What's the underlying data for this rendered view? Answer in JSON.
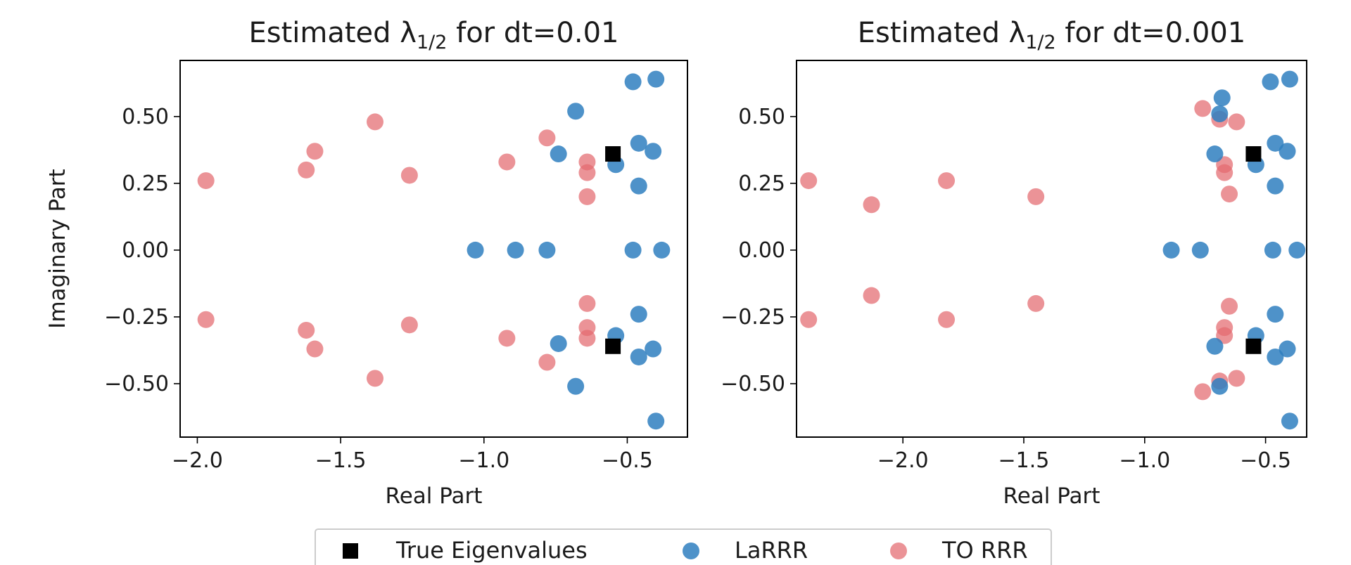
{
  "chart_data": [
    {
      "type": "scatter",
      "title_prefix": "Estimated λ",
      "title_subscript": "1/2",
      "title_suffix": " for dt=0.01",
      "xlabel": "Real Part",
      "ylabel": "Imaginary Part",
      "xlim": [
        -2.06,
        -0.29
      ],
      "ylim": [
        -0.7,
        0.71
      ],
      "xticks": [
        -2.0,
        -1.5,
        -1.0,
        -0.5
      ],
      "xtick_labels": [
        "−2.0",
        "−1.5",
        "−1.0",
        "−0.5"
      ],
      "yticks": [
        -0.5,
        -0.25,
        0.0,
        0.25,
        0.5
      ],
      "ytick_labels": [
        "−0.50",
        "−0.25",
        "0.00",
        "0.25",
        "0.50"
      ],
      "series": [
        {
          "name": "TO RRR",
          "points": [
            [
              -1.97,
              0.26
            ],
            [
              -1.97,
              -0.26
            ],
            [
              -1.62,
              0.3
            ],
            [
              -1.62,
              -0.3
            ],
            [
              -1.59,
              0.37
            ],
            [
              -1.59,
              -0.37
            ],
            [
              -1.38,
              0.48
            ],
            [
              -1.38,
              -0.48
            ],
            [
              -1.26,
              0.28
            ],
            [
              -1.26,
              -0.28
            ],
            [
              -0.92,
              0.33
            ],
            [
              -0.92,
              -0.33
            ],
            [
              -0.78,
              0.42
            ],
            [
              -0.78,
              -0.42
            ],
            [
              -0.64,
              0.33
            ],
            [
              -0.64,
              -0.33
            ],
            [
              -0.64,
              0.29
            ],
            [
              -0.64,
              -0.29
            ],
            [
              -0.64,
              0.2
            ],
            [
              -0.64,
              -0.2
            ]
          ]
        },
        {
          "name": "LaRRR",
          "points": [
            [
              -0.38,
              0.0
            ],
            [
              -0.48,
              0.0
            ],
            [
              -0.78,
              0.0
            ],
            [
              -0.89,
              0.0
            ],
            [
              -1.03,
              0.0
            ],
            [
              -0.4,
              0.64
            ],
            [
              -0.4,
              -0.64
            ],
            [
              -0.48,
              0.63
            ],
            [
              -0.41,
              0.37
            ],
            [
              -0.41,
              -0.37
            ],
            [
              -0.46,
              0.4
            ],
            [
              -0.46,
              -0.4
            ],
            [
              -0.46,
              0.24
            ],
            [
              -0.46,
              -0.24
            ],
            [
              -0.54,
              0.32
            ],
            [
              -0.54,
              -0.32
            ],
            [
              -0.74,
              0.36
            ],
            [
              -0.74,
              -0.35
            ],
            [
              -0.68,
              0.52
            ],
            [
              -0.68,
              -0.51
            ]
          ]
        },
        {
          "name": "True Eigenvalues",
          "points": [
            [
              -0.55,
              0.36
            ],
            [
              -0.55,
              -0.36
            ]
          ]
        }
      ]
    },
    {
      "type": "scatter",
      "title_prefix": "Estimated λ",
      "title_subscript": "1/2",
      "title_suffix": " for dt=0.001",
      "xlabel": "Real Part",
      "ylabel": "",
      "xlim": [
        -2.44,
        -0.33
      ],
      "ylim": [
        -0.7,
        0.71
      ],
      "xticks": [
        -2.0,
        -1.5,
        -1.0,
        -0.5
      ],
      "xtick_labels": [
        "−2.0",
        "−1.5",
        "−1.0",
        "−0.5"
      ],
      "yticks": [
        -0.5,
        -0.25,
        0.0,
        0.25,
        0.5
      ],
      "ytick_labels": [
        "−0.50",
        "−0.25",
        "0.00",
        "0.25",
        "0.50"
      ],
      "series": [
        {
          "name": "TO RRR",
          "points": [
            [
              -2.39,
              0.26
            ],
            [
              -2.39,
              -0.26
            ],
            [
              -2.13,
              0.17
            ],
            [
              -2.13,
              -0.17
            ],
            [
              -1.82,
              0.26
            ],
            [
              -1.82,
              -0.26
            ],
            [
              -1.45,
              0.2
            ],
            [
              -1.45,
              -0.2
            ],
            [
              -0.76,
              0.53
            ],
            [
              -0.76,
              -0.53
            ],
            [
              -0.69,
              0.49
            ],
            [
              -0.69,
              -0.49
            ],
            [
              -0.62,
              0.48
            ],
            [
              -0.62,
              -0.48
            ],
            [
              -0.67,
              0.32
            ],
            [
              -0.67,
              -0.32
            ],
            [
              -0.67,
              0.29
            ],
            [
              -0.67,
              -0.29
            ],
            [
              -0.65,
              0.21
            ],
            [
              -0.65,
              -0.21
            ]
          ]
        },
        {
          "name": "LaRRR",
          "points": [
            [
              -0.37,
              0.0
            ],
            [
              -0.47,
              0.0
            ],
            [
              -0.77,
              0.0
            ],
            [
              -0.89,
              0.0
            ],
            [
              -0.4,
              0.64
            ],
            [
              -0.4,
              -0.64
            ],
            [
              -0.48,
              0.63
            ],
            [
              -0.41,
              0.37
            ],
            [
              -0.41,
              -0.37
            ],
            [
              -0.46,
              0.4
            ],
            [
              -0.46,
              -0.4
            ],
            [
              -0.46,
              0.24
            ],
            [
              -0.46,
              -0.24
            ],
            [
              -0.54,
              0.32
            ],
            [
              -0.54,
              -0.32
            ],
            [
              -0.71,
              0.36
            ],
            [
              -0.71,
              -0.36
            ],
            [
              -0.68,
              0.57
            ],
            [
              -0.69,
              0.51
            ],
            [
              -0.69,
              -0.51
            ]
          ]
        },
        {
          "name": "True Eigenvalues",
          "points": [
            [
              -0.55,
              0.36
            ],
            [
              -0.55,
              -0.36
            ]
          ]
        }
      ]
    }
  ],
  "legend": {
    "placement": "bottom-center",
    "entries": [
      {
        "name": "True Eigenvalues",
        "marker": "square",
        "color": "#000000"
      },
      {
        "name": "LaRRR",
        "marker": "circle",
        "color": "#1f77b4"
      },
      {
        "name": "TO RRR",
        "marker": "circle",
        "color": "#e06666"
      }
    ]
  },
  "colors": {
    "True Eigenvalues": "#000000",
    "LaRRR": "#2f7fbf",
    "TO RRR": "#e36a6f"
  }
}
